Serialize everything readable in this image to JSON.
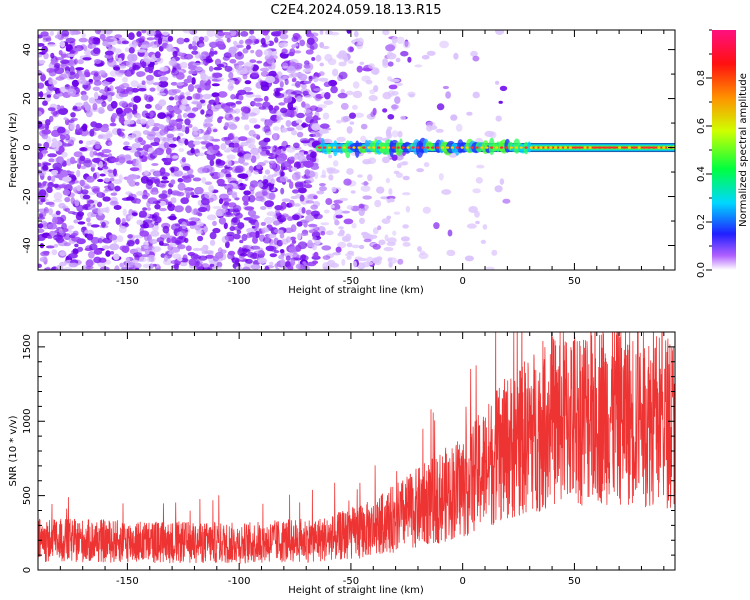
{
  "title": "C2E4.2024.059.18.13.R15",
  "chart_data": [
    {
      "type": "heatmap",
      "xlabel": "Height of straight line (km)",
      "ylabel": "Frequency (Hz)",
      "xlim": [
        -190,
        95
      ],
      "ylim": [
        -50,
        48
      ],
      "xticks": [
        -150,
        -100,
        -50,
        0,
        50
      ],
      "yticks": [
        -40,
        -20,
        0,
        20,
        40
      ],
      "colorbar": {
        "label": "Normalized spectral amplitude",
        "range": [
          0.0,
          1.0
        ],
        "ticks": [
          0.0,
          0.2,
          0.4,
          0.6,
          0.8
        ],
        "colormap": "rainbow"
      },
      "features": {
        "noise_region_x": [
          -190,
          -63
        ],
        "sparse_noise_x": [
          -63,
          -25
        ],
        "tone_frequency_hz": 0,
        "tone_start_x": -64,
        "tone_end_x": 95
      }
    },
    {
      "type": "line",
      "xlabel": "Height of straight line (km)",
      "ylabel": "SNR (10 * v/v)",
      "xlim": [
        -190,
        95
      ],
      "ylim": [
        0,
        1600
      ],
      "xticks": [
        -150,
        -100,
        -50,
        0,
        50
      ],
      "yticks": [
        0,
        500,
        1000,
        1500
      ],
      "series": [
        {
          "color": "#ee3333",
          "trend": [
            {
              "x": -190,
              "y": 200
            },
            {
              "x": -100,
              "y": 180
            },
            {
              "x": -60,
              "y": 210
            },
            {
              "x": -40,
              "y": 280
            },
            {
              "x": -20,
              "y": 420
            },
            {
              "x": 0,
              "y": 560
            },
            {
              "x": 20,
              "y": 820
            },
            {
              "x": 40,
              "y": 1010
            },
            {
              "x": 60,
              "y": 1060
            },
            {
              "x": 80,
              "y": 1030
            },
            {
              "x": 95,
              "y": 1000
            }
          ]
        }
      ]
    }
  ]
}
